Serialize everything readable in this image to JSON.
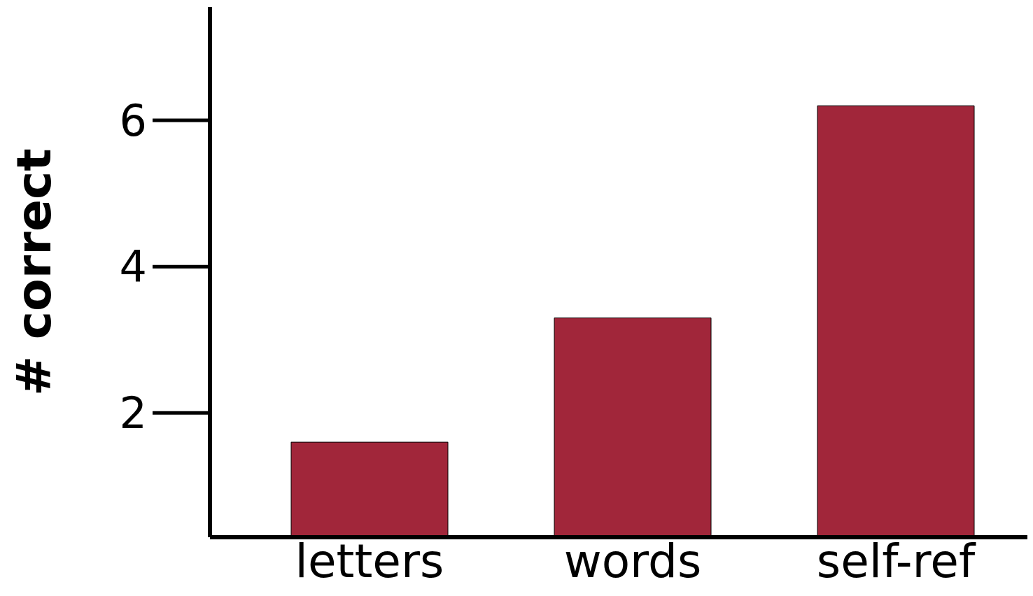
{
  "chart_data": {
    "type": "bar",
    "ylabel": "# correct",
    "categories": [
      "letters",
      "words",
      "self-ref"
    ],
    "values": [
      1.6,
      3.3,
      6.2
    ],
    "color": "#a1263a",
    "ylim": [
      0.3,
      7.55
    ],
    "yticks": [
      2,
      4,
      6
    ],
    "grid": false,
    "legend": false
  }
}
